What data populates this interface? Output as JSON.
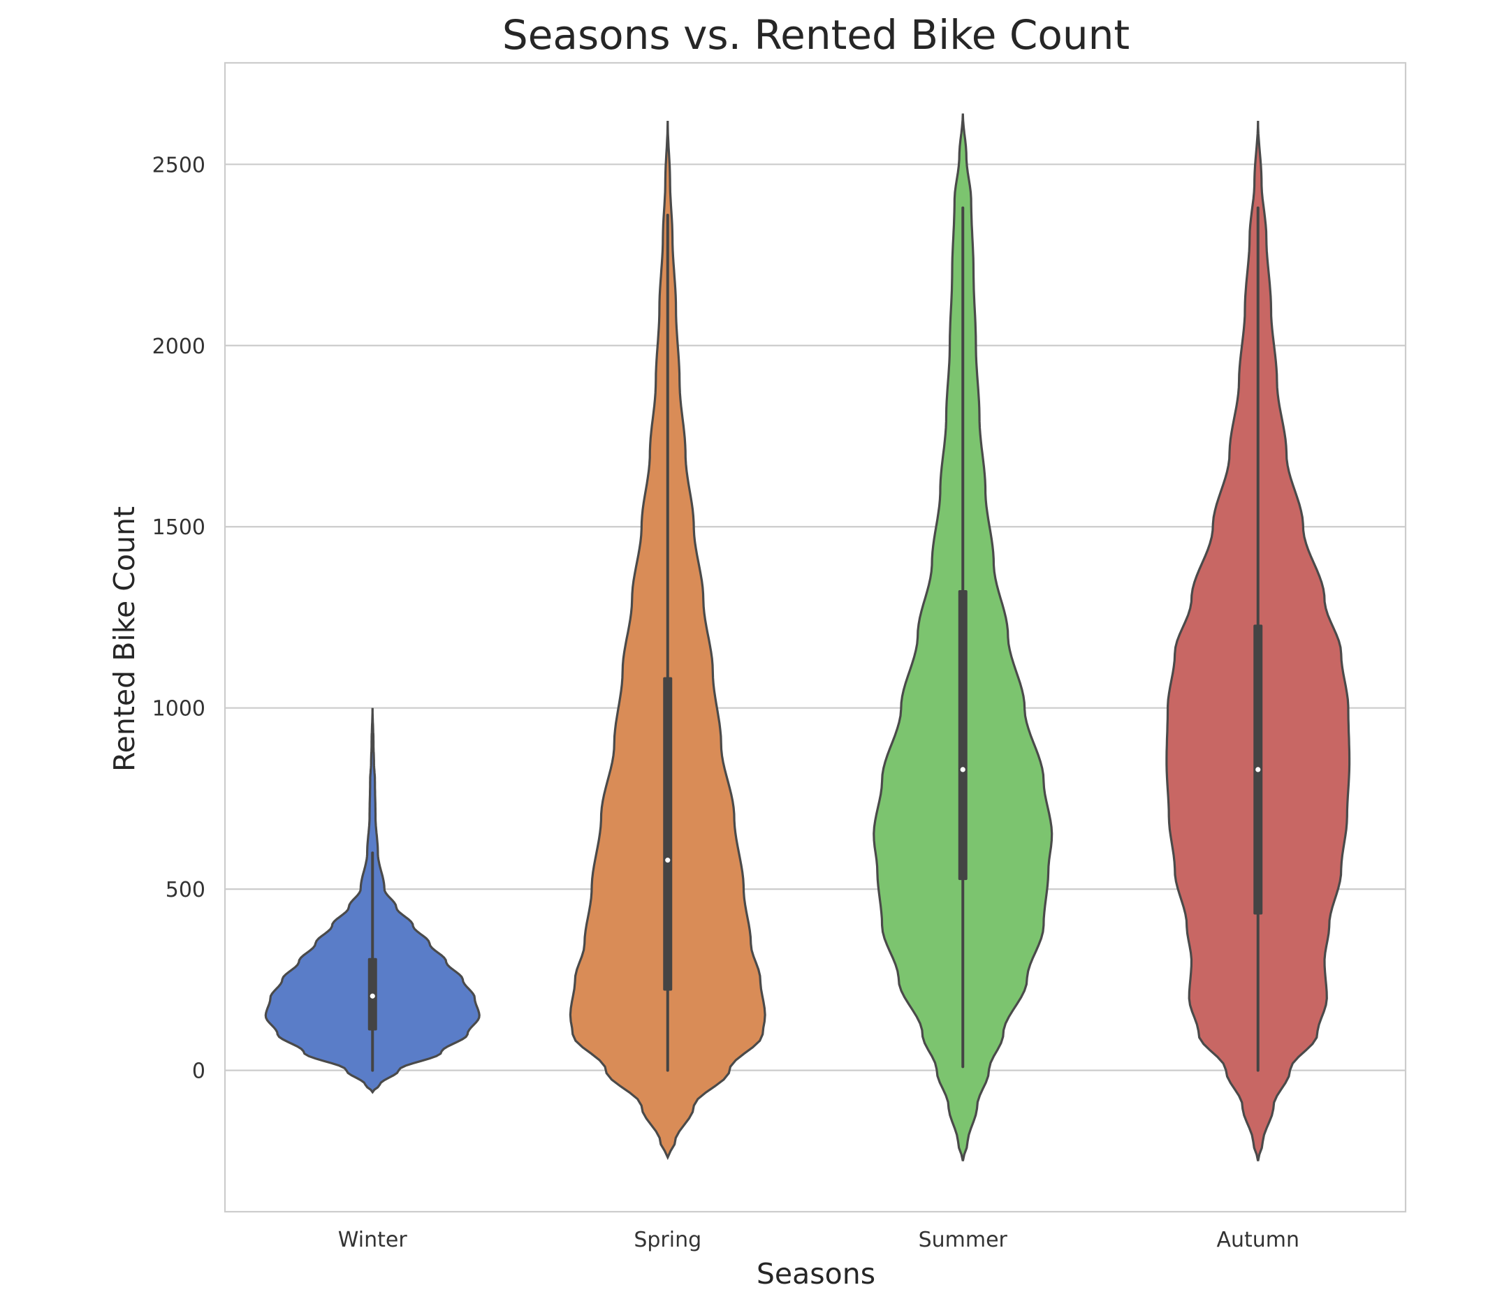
{
  "chart_data": {
    "type": "violin",
    "title": "Seasons vs. Rented Bike Count",
    "xlabel": "Seasons",
    "ylabel": "Rented Bike Count",
    "categories": [
      "Winter",
      "Spring",
      "Summer",
      "Autumn"
    ],
    "yticks": [
      0,
      500,
      1000,
      1500,
      2000,
      2500
    ],
    "ylim": [
      -390,
      2780
    ],
    "grid": true,
    "legend": "none",
    "series": [
      {
        "category": "Winter",
        "color": "#5a7dc8",
        "min": 0,
        "q1": 110,
        "median": 205,
        "q3": 310,
        "max": 600,
        "kde_low": -60,
        "kde_high": 1000,
        "density": [
          [
            -60,
            0
          ],
          [
            -40,
            0.06
          ],
          [
            0,
            0.22
          ],
          [
            50,
            0.58
          ],
          [
            100,
            0.8
          ],
          [
            150,
            0.9
          ],
          [
            200,
            0.86
          ],
          [
            250,
            0.76
          ],
          [
            300,
            0.62
          ],
          [
            350,
            0.48
          ],
          [
            400,
            0.34
          ],
          [
            450,
            0.2
          ],
          [
            500,
            0.1
          ],
          [
            600,
            0.045
          ],
          [
            700,
            0.025
          ],
          [
            800,
            0.02
          ],
          [
            850,
            0.012
          ],
          [
            900,
            0.008
          ],
          [
            1000,
            0
          ]
        ]
      },
      {
        "category": "Spring",
        "color": "#d98c57",
        "min": 0,
        "q1": 220,
        "median": 580,
        "q3": 1085,
        "max": 2360,
        "kde_low": -240,
        "kde_high": 2620,
        "density": [
          [
            -240,
            0
          ],
          [
            -200,
            0.06
          ],
          [
            -100,
            0.22
          ],
          [
            0,
            0.52
          ],
          [
            100,
            0.8
          ],
          [
            150,
            0.82
          ],
          [
            250,
            0.78
          ],
          [
            350,
            0.7
          ],
          [
            500,
            0.64
          ],
          [
            700,
            0.56
          ],
          [
            900,
            0.45
          ],
          [
            1100,
            0.38
          ],
          [
            1300,
            0.3
          ],
          [
            1500,
            0.22
          ],
          [
            1700,
            0.15
          ],
          [
            1900,
            0.1
          ],
          [
            2100,
            0.07
          ],
          [
            2300,
            0.04
          ],
          [
            2450,
            0.02
          ],
          [
            2620,
            0
          ]
        ]
      },
      {
        "category": "Summer",
        "color": "#7cc46f",
        "min": 10,
        "q1": 525,
        "median": 830,
        "q3": 1325,
        "max": 2380,
        "kde_low": -250,
        "kde_high": 2640,
        "density": [
          [
            -250,
            0
          ],
          [
            -200,
            0.04
          ],
          [
            -100,
            0.12
          ],
          [
            0,
            0.22
          ],
          [
            100,
            0.34
          ],
          [
            250,
            0.54
          ],
          [
            400,
            0.68
          ],
          [
            550,
            0.72
          ],
          [
            650,
            0.75
          ],
          [
            800,
            0.68
          ],
          [
            1000,
            0.52
          ],
          [
            1200,
            0.38
          ],
          [
            1400,
            0.26
          ],
          [
            1600,
            0.19
          ],
          [
            1800,
            0.14
          ],
          [
            2000,
            0.11
          ],
          [
            2200,
            0.09
          ],
          [
            2400,
            0.07
          ],
          [
            2520,
            0.03
          ],
          [
            2640,
            0
          ]
        ]
      },
      {
        "category": "Autumn",
        "color": "#c86764",
        "min": 0,
        "q1": 430,
        "median": 830,
        "q3": 1230,
        "max": 2380,
        "kde_low": -250,
        "kde_high": 2620,
        "density": [
          [
            -250,
            0
          ],
          [
            -200,
            0.04
          ],
          [
            -100,
            0.13
          ],
          [
            0,
            0.27
          ],
          [
            100,
            0.5
          ],
          [
            200,
            0.58
          ],
          [
            300,
            0.56
          ],
          [
            400,
            0.6
          ],
          [
            550,
            0.7
          ],
          [
            700,
            0.75
          ],
          [
            850,
            0.77
          ],
          [
            1000,
            0.76
          ],
          [
            1150,
            0.7
          ],
          [
            1300,
            0.56
          ],
          [
            1500,
            0.38
          ],
          [
            1700,
            0.24
          ],
          [
            1900,
            0.16
          ],
          [
            2100,
            0.11
          ],
          [
            2300,
            0.07
          ],
          [
            2450,
            0.03
          ],
          [
            2620,
            0
          ]
        ]
      }
    ]
  }
}
